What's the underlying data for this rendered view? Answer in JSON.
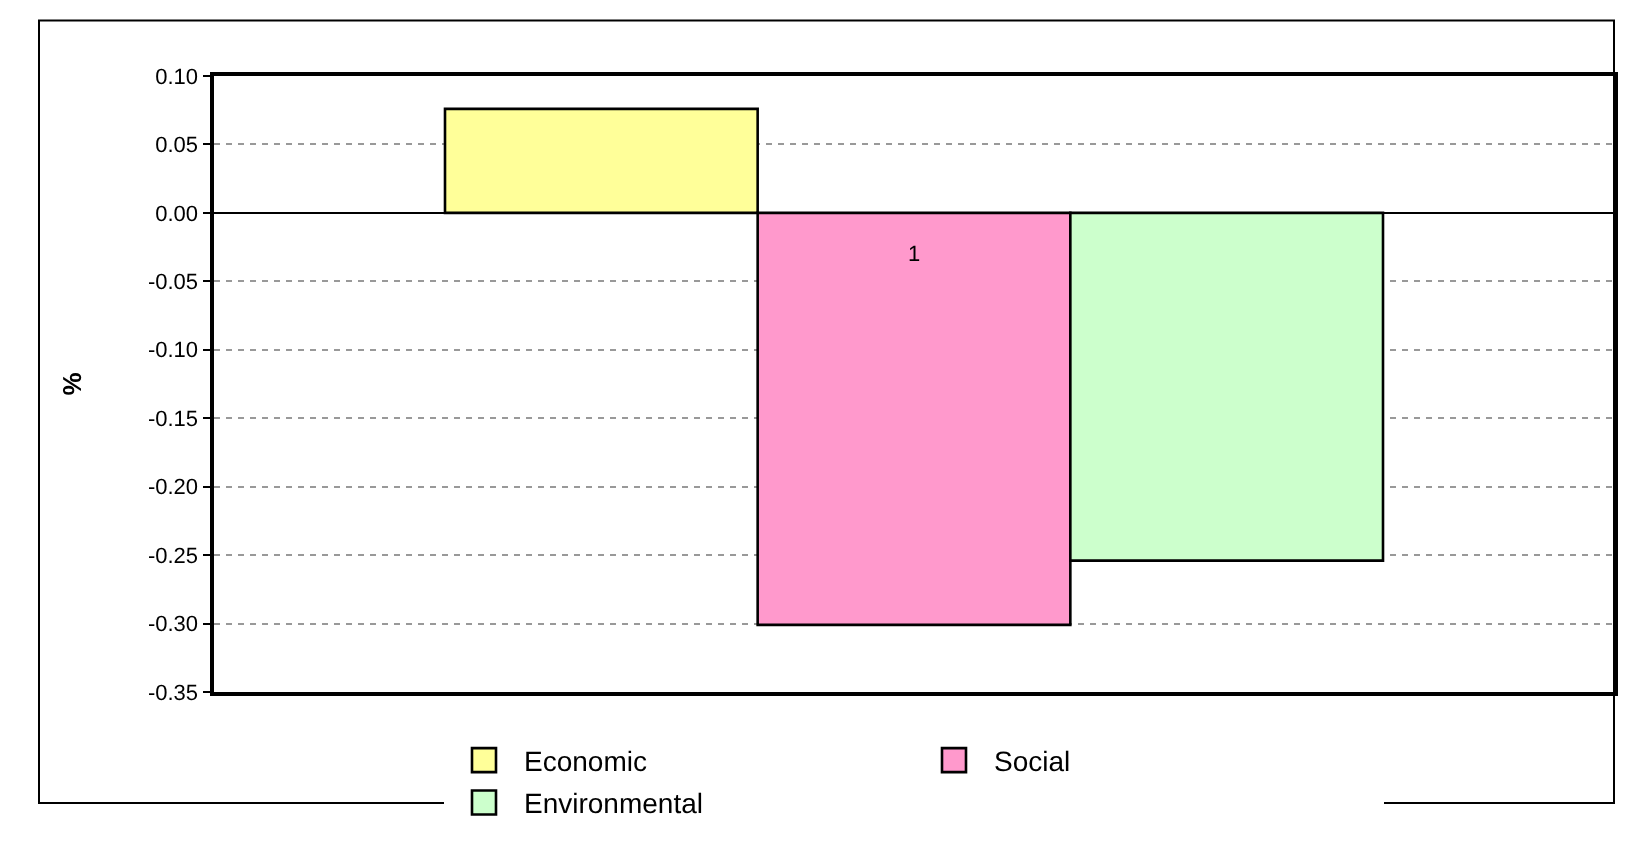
{
  "chart_data": {
    "type": "bar",
    "ylabel": "%",
    "categories": [
      "1"
    ],
    "series": [
      {
        "name": "Economic",
        "color": "#ffff99",
        "values": [
          0.076
        ]
      },
      {
        "name": "Social",
        "color": "#ff99cc",
        "values": [
          -0.301
        ]
      },
      {
        "name": "Environmental",
        "color": "#ccffcc",
        "values": [
          -0.254
        ]
      }
    ],
    "ylim": [
      -0.35,
      0.1
    ],
    "yticks": [
      {
        "value": -0.35,
        "label": "-0.35"
      },
      {
        "value": -0.3,
        "label": "-0.30"
      },
      {
        "value": -0.25,
        "label": "-0.25"
      },
      {
        "value": -0.2,
        "label": "-0.20"
      },
      {
        "value": -0.15,
        "label": "-0.15"
      },
      {
        "value": -0.1,
        "label": "-0.10"
      },
      {
        "value": -0.05,
        "label": "-0.05"
      },
      {
        "value": 0,
        "label": "0.00"
      },
      {
        "value": 0.05,
        "label": "0.05"
      },
      {
        "value": 0.1,
        "label": "0.10"
      }
    ],
    "grid": "y",
    "legend": "bottom"
  }
}
